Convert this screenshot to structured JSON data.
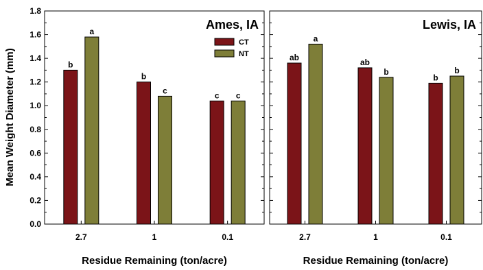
{
  "ylabel": "Mean Weight Diameter (mm)",
  "colors": {
    "CT": "#7B1418",
    "NT": "#7E7E38"
  },
  "chart_data": [
    {
      "type": "bar",
      "title": "Ames, IA",
      "xlabel": "Residue Remaining (ton/acre)",
      "ylabel": "Mean Weight Diameter (mm)",
      "ylim": [
        0,
        1.8
      ],
      "yticks": [
        "0.0",
        "0.2",
        "0.4",
        "0.6",
        "0.8",
        "1.0",
        "1.2",
        "1.4",
        "1.6",
        "1.8"
      ],
      "categories": [
        "2.7",
        "1",
        "0.1"
      ],
      "legend": {
        "position": "top-right",
        "entries": [
          "CT",
          "NT"
        ]
      },
      "series": [
        {
          "name": "CT",
          "values": [
            1.3,
            1.2,
            1.04
          ],
          "labels": [
            "b",
            "b",
            "c"
          ]
        },
        {
          "name": "NT",
          "values": [
            1.58,
            1.08,
            1.04
          ],
          "labels": [
            "a",
            "c",
            "c"
          ]
        }
      ]
    },
    {
      "type": "bar",
      "title": "Lewis, IA",
      "xlabel": "Residue Remaining (ton/acre)",
      "ylim": [
        0,
        1.8
      ],
      "categories": [
        "2.7",
        "1",
        "0.1"
      ],
      "series": [
        {
          "name": "CT",
          "values": [
            1.36,
            1.32,
            1.19
          ],
          "labels": [
            "ab",
            "ab",
            "b"
          ]
        },
        {
          "name": "NT",
          "values": [
            1.52,
            1.24,
            1.25
          ],
          "labels": [
            "a",
            "b",
            "b"
          ]
        }
      ]
    }
  ]
}
